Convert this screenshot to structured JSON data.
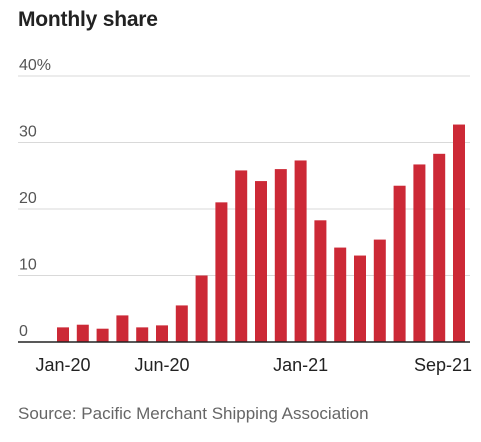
{
  "chart_data": {
    "type": "bar",
    "title": "Monthly share",
    "xlabel": "",
    "ylabel": "",
    "ylim": [
      0,
      40
    ],
    "yticks": [
      0,
      10,
      20,
      30,
      40
    ],
    "ytick_labels": [
      "0",
      "10",
      "20",
      "30",
      "40%"
    ],
    "categories": [
      "Jan-20",
      "Feb-20",
      "Mar-20",
      "Apr-20",
      "May-20",
      "Jun-20",
      "Jul-20",
      "Aug-20",
      "Sep-20",
      "Oct-20",
      "Nov-20",
      "Dec-20",
      "Jan-21",
      "Feb-21",
      "Mar-21",
      "Apr-21",
      "May-21",
      "Jun-21",
      "Jul-21",
      "Aug-21",
      "Sep-21"
    ],
    "x_tick_labels": [
      {
        "index": 0,
        "label": "Jan-20"
      },
      {
        "index": 5,
        "label": "Jun-20"
      },
      {
        "index": 12,
        "label": "Jan-21"
      },
      {
        "index": 20,
        "label": "Sep-21"
      }
    ],
    "values": [
      2.2,
      2.6,
      2.0,
      4.0,
      2.2,
      2.5,
      5.5,
      10.0,
      21.0,
      25.8,
      24.2,
      26.0,
      27.3,
      18.3,
      14.2,
      13.0,
      15.4,
      23.5,
      26.7,
      28.3,
      32.7
    ],
    "grid": "horizontal",
    "bar_color": "#cc2936",
    "source": "Source: Pacific Merchant Shipping Association"
  }
}
